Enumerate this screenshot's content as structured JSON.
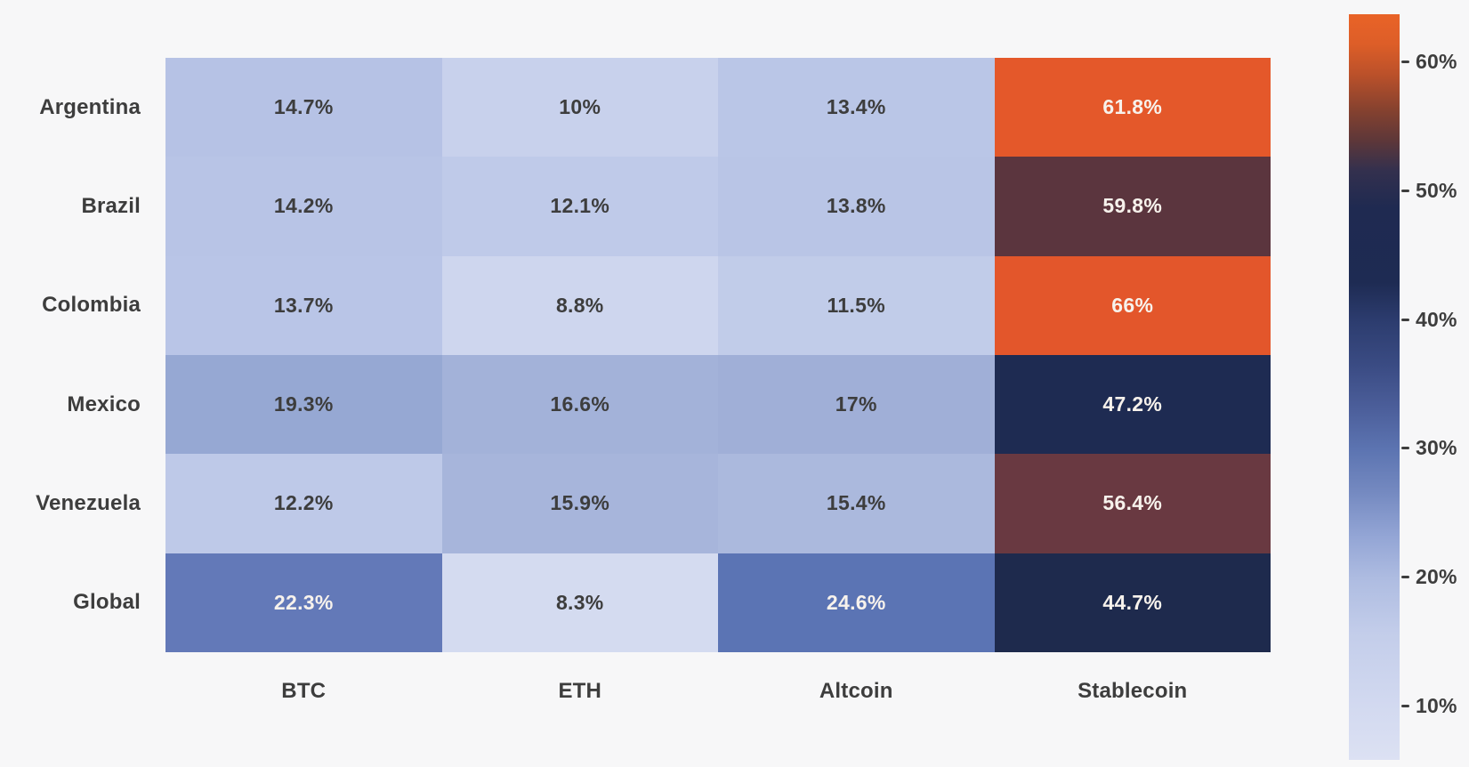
{
  "figure": {
    "background_color": "#f7f7f8",
    "label_color": "#3d3d3d",
    "light_text_color": "#f7f2ec"
  },
  "chart_data": {
    "type": "heatmap",
    "title": "",
    "rows": [
      "Argentina",
      "Brazil",
      "Colombia",
      "Mexico",
      "Venezuela",
      "Global"
    ],
    "columns": [
      "BTC",
      "ETH",
      "Altcoin",
      "Stablecoin"
    ],
    "values": [
      [
        14.7,
        10,
        13.4,
        61.8
      ],
      [
        14.2,
        12.1,
        13.8,
        59.8
      ],
      [
        13.7,
        8.8,
        11.5,
        66
      ],
      [
        19.3,
        16.6,
        17,
        47.2
      ],
      [
        12.2,
        15.9,
        15.4,
        56.4
      ],
      [
        22.3,
        8.3,
        24.6,
        44.7
      ]
    ],
    "cell_labels": [
      [
        "14.7%",
        "10%",
        "13.4%",
        "61.8%"
      ],
      [
        "14.2%",
        "12.1%",
        "13.8%",
        "59.8%"
      ],
      [
        "13.7%",
        "8.8%",
        "11.5%",
        "66%"
      ],
      [
        "19.3%",
        "16.6%",
        "17%",
        "47.2%"
      ],
      [
        "12.2%",
        "15.9%",
        "15.4%",
        "56.4%"
      ],
      [
        "22.3%",
        "8.3%",
        "24.6%",
        "44.7%"
      ]
    ],
    "cell_colors": [
      [
        "#b6c2e5",
        "#c8d1ec",
        "#bac6e7",
        "#e4582a"
      ],
      [
        "#b8c4e6",
        "#bfcae9",
        "#b9c5e6",
        "#5b353e"
      ],
      [
        "#b9c5e7",
        "#ced6ee",
        "#c1cce9",
        "#e3562b"
      ],
      [
        "#96a8d3",
        "#a3b2d9",
        "#a0afd7",
        "#1e2b52"
      ],
      [
        "#bec9e8",
        "#a7b5db",
        "#abb9dd",
        "#693941"
      ],
      [
        "#6379b8",
        "#d4dbf0",
        "#5b74b4",
        "#1e2a4d"
      ]
    ],
    "cell_text_is_light": [
      [
        false,
        false,
        false,
        true
      ],
      [
        false,
        false,
        false,
        true
      ],
      [
        false,
        false,
        false,
        true
      ],
      [
        false,
        false,
        false,
        true
      ],
      [
        false,
        false,
        false,
        true
      ],
      [
        true,
        false,
        true,
        true
      ]
    ],
    "grid": false,
    "legend_position": "right",
    "colorbar": {
      "tick_labels": [
        "60%",
        "50%",
        "40%",
        "30%",
        "20%",
        "10%"
      ],
      "tick_values": [
        60,
        50,
        40,
        30,
        20,
        10
      ],
      "value_top": 63.7,
      "value_bottom": 5.8,
      "gradient_stops": [
        {
          "pos": 0,
          "color": "#e96327"
        },
        {
          "pos": 0.04,
          "color": "#dd5e28"
        },
        {
          "pos": 0.08,
          "color": "#bc512a"
        },
        {
          "pos": 0.13,
          "color": "#84412f"
        },
        {
          "pos": 0.17,
          "color": "#5d3739"
        },
        {
          "pos": 0.21,
          "color": "#33304e"
        },
        {
          "pos": 0.26,
          "color": "#1f2a51"
        },
        {
          "pos": 0.36,
          "color": "#1e2b53"
        },
        {
          "pos": 0.41,
          "color": "#2c3c6e"
        },
        {
          "pos": 0.47,
          "color": "#3a4b83"
        },
        {
          "pos": 0.53,
          "color": "#4c5f9b"
        },
        {
          "pos": 0.584,
          "color": "#5c74b1"
        },
        {
          "pos": 0.64,
          "color": "#7489c0"
        },
        {
          "pos": 0.7,
          "color": "#93a5d5"
        },
        {
          "pos": 0.757,
          "color": "#aebce1"
        },
        {
          "pos": 0.83,
          "color": "#c3cdea"
        },
        {
          "pos": 0.927,
          "color": "#d2d9f0"
        },
        {
          "pos": 1,
          "color": "#dce1f3"
        }
      ]
    }
  }
}
